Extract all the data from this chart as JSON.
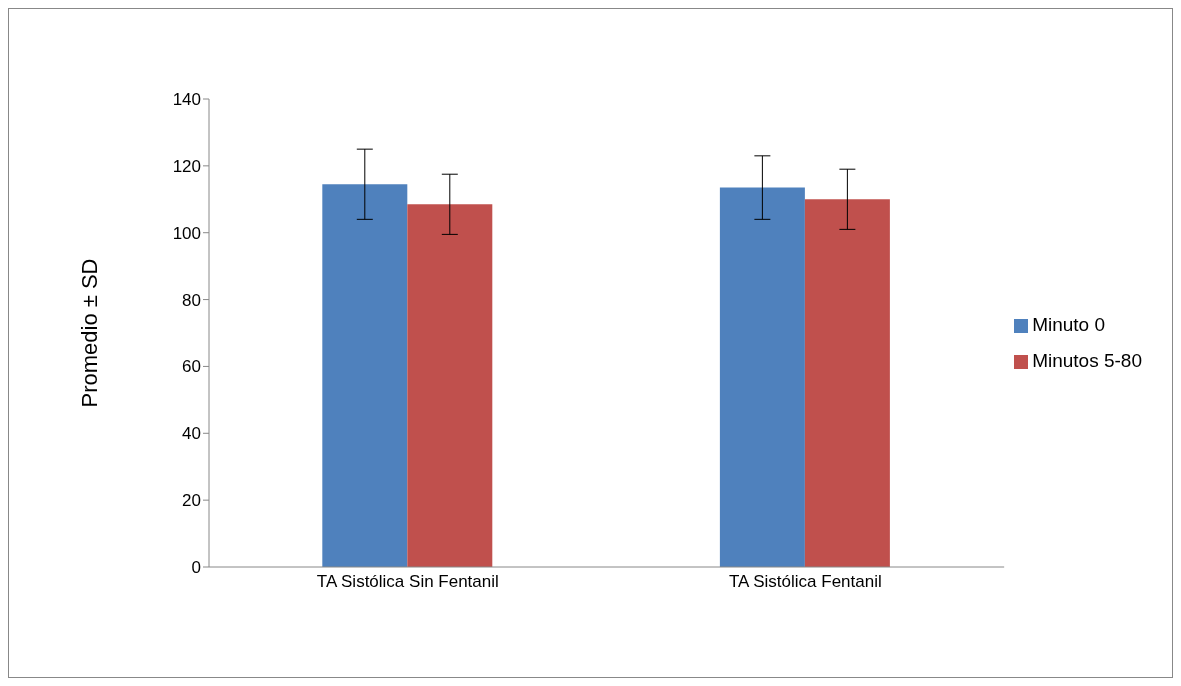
{
  "chart_data": {
    "type": "bar",
    "ylabel": "Promedio ± SD",
    "categories": [
      "TA Sistólica Sin Fentanil",
      "TA Sistólica Fentanil"
    ],
    "series": [
      {
        "name": "Minuto 0",
        "color": "#4f81bd",
        "values": [
          114.5,
          113.5
        ],
        "errors": [
          [
            104,
            125
          ],
          [
            104,
            123
          ]
        ]
      },
      {
        "name": "Minutos 5-80",
        "color": "#c0504d",
        "values": [
          108.5,
          110
        ],
        "errors": [
          [
            99.5,
            117.5
          ],
          [
            101,
            119
          ]
        ]
      }
    ],
    "ylim": [
      0,
      140
    ],
    "yticks": [
      0,
      20,
      40,
      60,
      80,
      100,
      120,
      140
    ],
    "grid": false,
    "legend": "right"
  }
}
